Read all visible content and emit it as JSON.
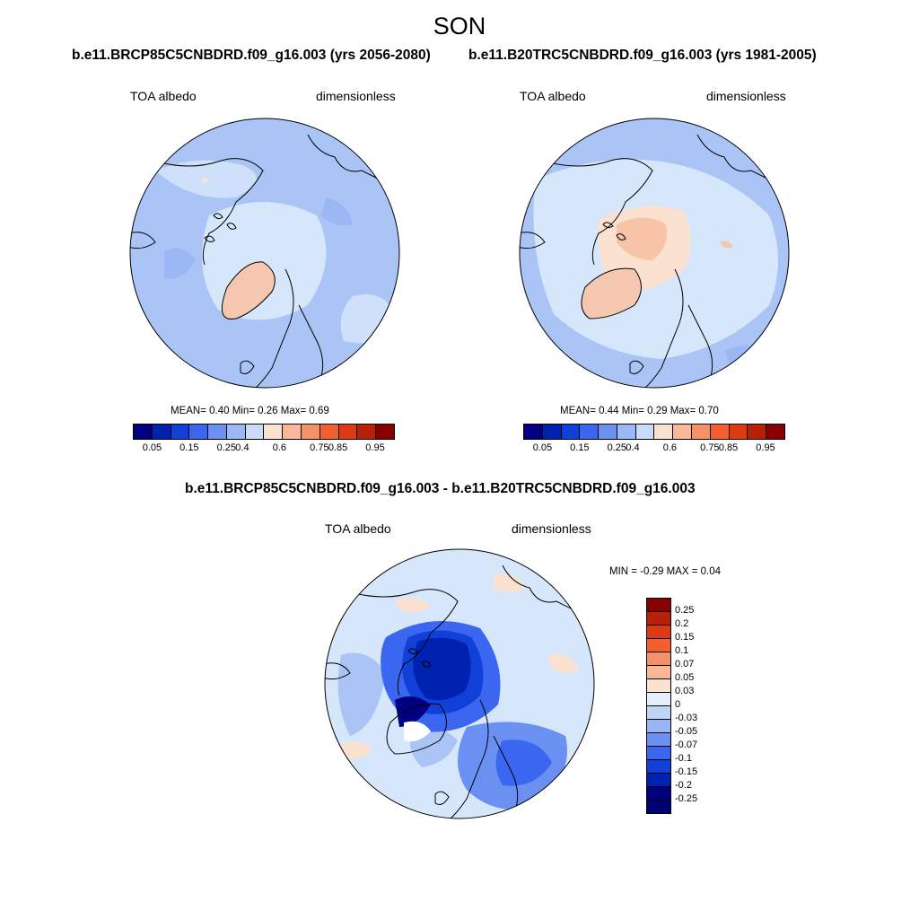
{
  "figure": {
    "season": "SON",
    "panel1": {
      "title": "b.e11.BRCP85C5CNBDRD.f09_g16.003 (yrs 2056-2080)",
      "left_label": "TOA albedo",
      "right_label": "dimensionless",
      "stats": "MEAN=  0.40  Min=  0.26  Max=  0.69"
    },
    "panel2": {
      "title": "b.e11.B20TRC5CNBDRD.f09_g16.003 (yrs 1981-2005)",
      "left_label": "TOA albedo",
      "right_label": "dimensionless",
      "stats": "MEAN=  0.44  Min=  0.29  Max=  0.70"
    },
    "panel3": {
      "title": "b.e11.BRCP85C5CNBDRD.f09_g16.003 - b.e11.B20TRC5CNBDRD.f09_g16.003",
      "left_label": "TOA albedo",
      "right_label": "dimensionless",
      "stats": "MIN =  -0.29 MAX =   0.04"
    }
  },
  "colorbar_abs": {
    "tick_labels": [
      "0.05",
      "0.15",
      "0.25",
      "0.4",
      "0.6",
      "0.75",
      "0.85",
      "0.95"
    ],
    "colors": [
      "#000080",
      "#0022b0",
      "#1040d8",
      "#3a66f0",
      "#6a90f2",
      "#9ab8f6",
      "#c8dcf8",
      "#fbe1cf",
      "#f8b898",
      "#f59068",
      "#f26030",
      "#e03a14",
      "#b82008",
      "#880000"
    ]
  },
  "colorbar_diff": {
    "tick_labels": [
      "0.25",
      "0.2",
      "0.15",
      "0.1",
      "0.07",
      "0.05",
      "0.03",
      "0",
      "-0.03",
      "-0.05",
      "-0.07",
      "-0.1",
      "-0.15",
      "-0.2",
      "-0.25"
    ],
    "colors": [
      "#880000",
      "#b82008",
      "#e03a14",
      "#f26030",
      "#f59068",
      "#f8b898",
      "#fbe1cf",
      "#e4eefc",
      "#c0d4f8",
      "#98b6f4",
      "#6a90f2",
      "#3a66f0",
      "#1040d8",
      "#0022b0",
      "#000080",
      "#000070"
    ]
  }
}
